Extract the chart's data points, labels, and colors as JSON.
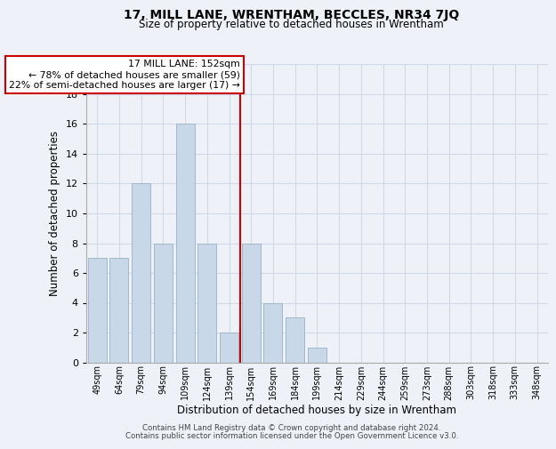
{
  "title": "17, MILL LANE, WRENTHAM, BECCLES, NR34 7JQ",
  "subtitle": "Size of property relative to detached houses in Wrentham",
  "xlabel": "Distribution of detached houses by size in Wrentham",
  "ylabel": "Number of detached properties",
  "bar_labels": [
    "49sqm",
    "64sqm",
    "79sqm",
    "94sqm",
    "109sqm",
    "124sqm",
    "139sqm",
    "154sqm",
    "169sqm",
    "184sqm",
    "199sqm",
    "214sqm",
    "229sqm",
    "244sqm",
    "259sqm",
    "273sqm",
    "288sqm",
    "303sqm",
    "318sqm",
    "333sqm",
    "348sqm"
  ],
  "bar_values": [
    7,
    7,
    12,
    8,
    16,
    8,
    2,
    8,
    4,
    3,
    1,
    0,
    0,
    0,
    0,
    0,
    0,
    0,
    0,
    0,
    0
  ],
  "bar_color": "#c8d8e8",
  "bar_edge_color": "#a0b8cc",
  "reference_line_index": 7,
  "reference_line_color": "#cc0000",
  "annotation_line1": "17 MILL LANE: 152sqm",
  "annotation_line2": "← 78% of detached houses are smaller (59)",
  "annotation_line3": "22% of semi-detached houses are larger (17) →",
  "annotation_box_color": "#ffffff",
  "annotation_box_edge_color": "#cc0000",
  "ylim": [
    0,
    20
  ],
  "yticks": [
    0,
    2,
    4,
    6,
    8,
    10,
    12,
    14,
    16,
    18,
    20
  ],
  "grid_color": "#d0d8e8",
  "background_color": "#eef2f8",
  "footer_line1": "Contains HM Land Registry data © Crown copyright and database right 2024.",
  "footer_line2": "Contains public sector information licensed under the Open Government Licence v3.0."
}
